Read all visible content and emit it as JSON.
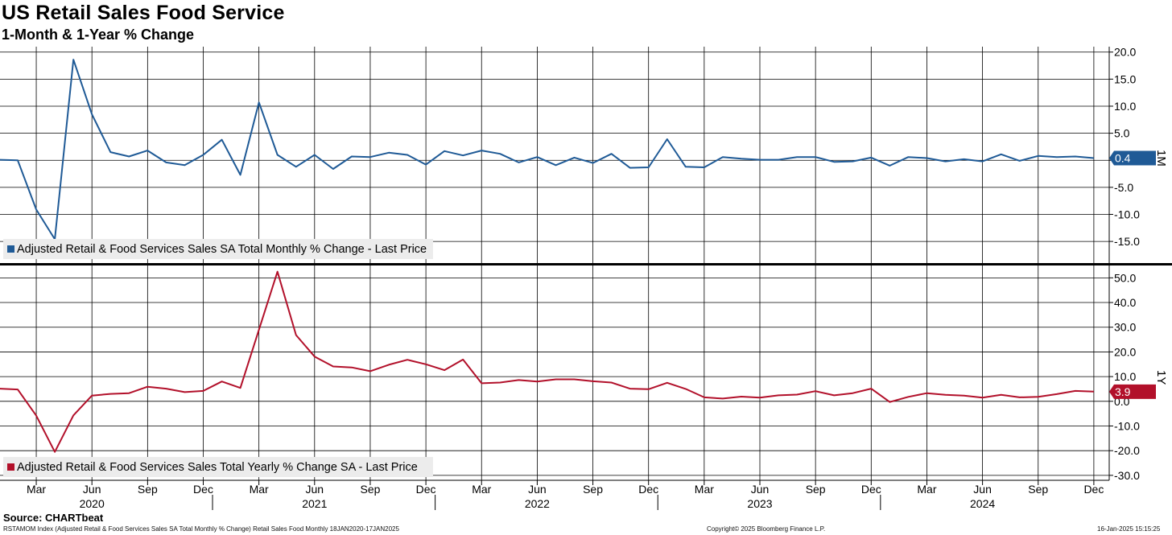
{
  "header": {
    "title": "US Retail Sales Food Service",
    "subtitle": "1-Month & 1-Year % Change"
  },
  "footer": {
    "source": "Source: CHARTbeat",
    "index_info": "RSTAMOM Index (Adjusted Retail & Food Services Sales SA Total Monthly % Change) Retail Sales Food  Monthly 18JAN2020-17JAN2025",
    "copyright": "Copyright© 2025 Bloomberg Finance L.P.",
    "timestamp": "16-Jan-2025 15:15:25"
  },
  "colors": {
    "series_1m": "#1f5a96",
    "series_1y": "#b2102a",
    "grid": "#000000"
  },
  "chart_data": [
    {
      "type": "line",
      "panel_label": "1M",
      "ylim": [
        -19,
        21
      ],
      "yticks": [
        20.0,
        15.0,
        10.0,
        5.0,
        0.0,
        -5.0,
        -10.0,
        -15.0
      ],
      "ytick_labels": [
        "20.0",
        "15.0",
        "10.0",
        "5.0",
        "",
        "-5.0",
        "-10.0",
        "-15.0"
      ],
      "legend": "Adjusted Retail & Food Services Sales SA Total Monthly % Change - Last Price",
      "last_value_label": "0.4",
      "last_value": 0.4,
      "series": [
        {
          "name": "Adjusted Retail & Food Services Sales SA Total Monthly % Change - Last Price",
          "x": [
            "2020-01",
            "2020-02",
            "2020-03",
            "2020-04",
            "2020-05",
            "2020-06",
            "2020-07",
            "2020-08",
            "2020-09",
            "2020-10",
            "2020-11",
            "2020-12",
            "2021-01",
            "2021-02",
            "2021-03",
            "2021-04",
            "2021-05",
            "2021-06",
            "2021-07",
            "2021-08",
            "2021-09",
            "2021-10",
            "2021-11",
            "2021-12",
            "2022-01",
            "2022-02",
            "2022-03",
            "2022-04",
            "2022-05",
            "2022-06",
            "2022-07",
            "2022-08",
            "2022-09",
            "2022-10",
            "2022-11",
            "2022-12",
            "2023-01",
            "2023-02",
            "2023-03",
            "2023-04",
            "2023-05",
            "2023-06",
            "2023-07",
            "2023-08",
            "2023-09",
            "2023-10",
            "2023-11",
            "2023-12",
            "2024-01",
            "2024-02",
            "2024-03",
            "2024-04",
            "2024-05",
            "2024-06",
            "2024-07",
            "2024-08",
            "2024-09",
            "2024-10",
            "2024-11",
            "2024-12"
          ],
          "values": [
            0.1,
            0.0,
            -9.1,
            -14.6,
            18.6,
            8.5,
            1.5,
            0.7,
            1.8,
            -0.4,
            -0.9,
            1.0,
            3.8,
            -2.7,
            10.7,
            1.0,
            -1.2,
            1.0,
            -1.6,
            0.7,
            0.6,
            1.4,
            1.0,
            -0.8,
            1.7,
            0.9,
            1.8,
            1.2,
            -0.4,
            0.6,
            -0.9,
            0.5,
            -0.5,
            1.2,
            -1.4,
            -1.3,
            3.9,
            -1.2,
            -1.3,
            0.6,
            0.3,
            0.1,
            0.1,
            0.6,
            0.6,
            -0.3,
            -0.2,
            0.5,
            -1.0,
            0.6,
            0.4,
            -0.2,
            0.2,
            -0.2,
            1.1,
            -0.1,
            0.8,
            0.6,
            0.7,
            0.4
          ]
        }
      ]
    },
    {
      "type": "line",
      "panel_label": "1Y",
      "ylim": [
        -32,
        55
      ],
      "yticks": [
        50.0,
        40.0,
        30.0,
        20.0,
        10.0,
        0.0,
        -10.0,
        -20.0,
        -30.0
      ],
      "ytick_labels": [
        "50.0",
        "40.0",
        "30.0",
        "20.0",
        "10.0",
        "0.0",
        "-10.0",
        "-20.0",
        "-30.0"
      ],
      "legend": "Adjusted Retail & Food Services Sales Total Yearly % Change SA - Last Price",
      "last_value_label": "3.9",
      "last_value": 3.9,
      "series": [
        {
          "name": "Adjusted Retail & Food Services Sales Total Yearly % Change SA - Last Price",
          "x": [
            "2020-01",
            "2020-02",
            "2020-03",
            "2020-04",
            "2020-05",
            "2020-06",
            "2020-07",
            "2020-08",
            "2020-09",
            "2020-10",
            "2020-11",
            "2020-12",
            "2021-01",
            "2021-02",
            "2021-03",
            "2021-04",
            "2021-05",
            "2021-06",
            "2021-07",
            "2021-08",
            "2021-09",
            "2021-10",
            "2021-11",
            "2021-12",
            "2022-01",
            "2022-02",
            "2022-03",
            "2022-04",
            "2022-05",
            "2022-06",
            "2022-07",
            "2022-08",
            "2022-09",
            "2022-10",
            "2022-11",
            "2022-12",
            "2023-01",
            "2023-02",
            "2023-03",
            "2023-04",
            "2023-05",
            "2023-06",
            "2023-07",
            "2023-08",
            "2023-09",
            "2023-10",
            "2023-11",
            "2023-12",
            "2024-01",
            "2024-02",
            "2024-03",
            "2024-04",
            "2024-05",
            "2024-06",
            "2024-07",
            "2024-08",
            "2024-09",
            "2024-10",
            "2024-11",
            "2024-12"
          ],
          "values": [
            5.1,
            4.8,
            -5.8,
            -20.5,
            -5.7,
            2.3,
            3.0,
            3.3,
            5.9,
            5.1,
            3.7,
            4.2,
            8.0,
            5.4,
            29.0,
            52.5,
            26.8,
            18.1,
            14.1,
            13.7,
            12.2,
            14.8,
            16.8,
            15.0,
            12.6,
            16.9,
            7.3,
            7.6,
            8.6,
            8.0,
            8.9,
            8.9,
            8.1,
            7.6,
            5.1,
            4.9,
            7.5,
            5.0,
            1.6,
            1.1,
            1.9,
            1.5,
            2.4,
            2.7,
            4.1,
            2.4,
            3.3,
            5.1,
            -0.3,
            1.8,
            3.3,
            2.6,
            2.3,
            1.5,
            2.6,
            1.6,
            1.8,
            2.9,
            4.2,
            3.9
          ]
        }
      ]
    }
  ],
  "x_axis": {
    "months": [
      "Mar",
      "Jun",
      "Sep",
      "Dec",
      "Mar",
      "Jun",
      "Sep",
      "Dec",
      "Mar",
      "Jun",
      "Sep",
      "Dec",
      "Mar",
      "Jun",
      "Sep",
      "Dec",
      "Mar",
      "Jun",
      "Sep",
      "Dec"
    ],
    "month_positions": [
      "2020-03",
      "2020-06",
      "2020-09",
      "2020-12",
      "2021-03",
      "2021-06",
      "2021-09",
      "2021-12",
      "2022-03",
      "2022-06",
      "2022-09",
      "2022-12",
      "2023-03",
      "2023-06",
      "2023-09",
      "2023-12",
      "2024-03",
      "2024-06",
      "2024-09",
      "2024-12"
    ],
    "years": [
      "2020",
      "2021",
      "2022",
      "2023",
      "2024"
    ],
    "year_positions": [
      "2020-06",
      "2021-06",
      "2022-06",
      "2023-06",
      "2024-06"
    ]
  }
}
